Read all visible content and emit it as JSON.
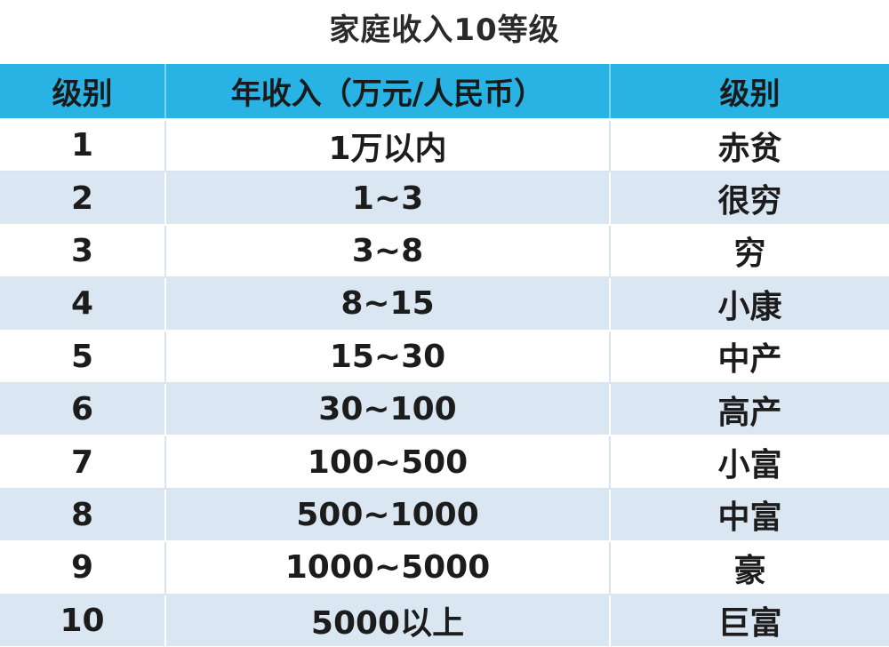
{
  "title": "家庭收入10等级",
  "columns": [
    "级别",
    "年收入（万元/人民币）",
    "级别"
  ],
  "rows": [
    {
      "level": "1",
      "income": "1万以内",
      "class": "赤贫"
    },
    {
      "level": "2",
      "income": "1~3",
      "class": "很穷"
    },
    {
      "level": "3",
      "income": "3~8",
      "class": "穷"
    },
    {
      "level": "4",
      "income": "8~15",
      "class": "小康"
    },
    {
      "level": "5",
      "income": "15~30",
      "class": "中产"
    },
    {
      "level": "6",
      "income": "30~100",
      "class": "高产"
    },
    {
      "level": "7",
      "income": "100~500",
      "class": "小富"
    },
    {
      "level": "8",
      "income": "500~1000",
      "class": "中富"
    },
    {
      "level": "9",
      "income": "1000~5000",
      "class": "豪"
    },
    {
      "level": "10",
      "income": "5000以上",
      "class": "巨富"
    }
  ],
  "colors": {
    "header_bg": "#29b3e4",
    "row_alt_bg": "#dbe6f3",
    "row_bg": "#ffffff",
    "text": "#1c1c1c"
  }
}
